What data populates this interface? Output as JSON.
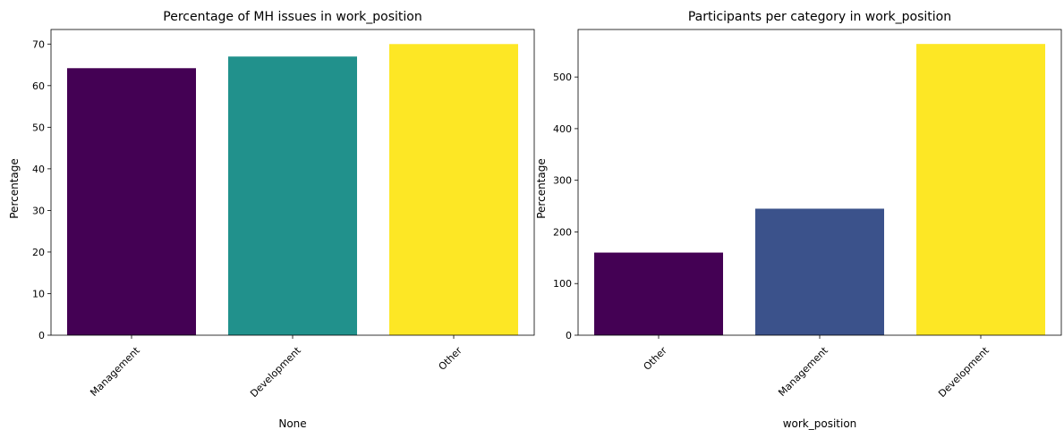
{
  "chart_data": [
    {
      "type": "bar",
      "title": "Percentage of MH issues in work_position",
      "xlabel": "None",
      "ylabel": "Percentage",
      "categories": [
        "Management",
        "Development",
        "Other"
      ],
      "values": [
        64.2,
        67.0,
        70.0
      ],
      "colors": [
        "#440154",
        "#21918c",
        "#fde725"
      ],
      "ylim": [
        0,
        73.5
      ],
      "yticks": [
        0,
        10,
        20,
        30,
        40,
        50,
        60,
        70
      ],
      "grid": false,
      "legend": "none"
    },
    {
      "type": "bar",
      "title": "Participants per category in work_position",
      "xlabel": "work_position",
      "ylabel": "Percentage",
      "categories": [
        "Other",
        "Management",
        "Development"
      ],
      "values": [
        160,
        245,
        564
      ],
      "colors": [
        "#440154",
        "#3b528b",
        "#fde725"
      ],
      "ylim": [
        0,
        592
      ],
      "yticks": [
        0,
        100,
        200,
        300,
        400,
        500
      ],
      "grid": false,
      "legend": "none"
    }
  ]
}
